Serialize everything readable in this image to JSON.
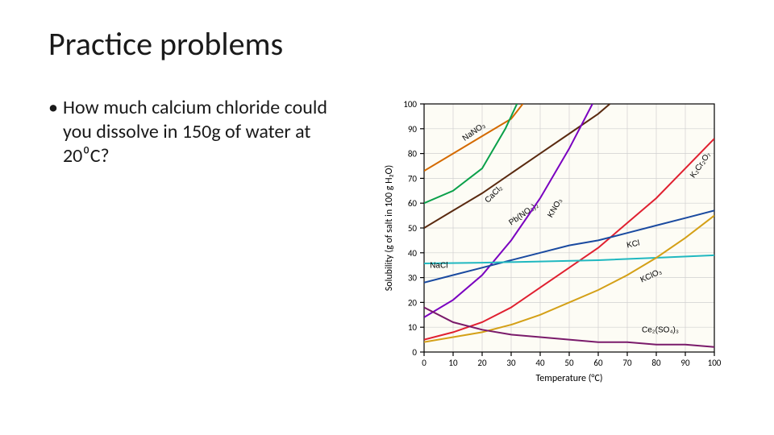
{
  "title": "Practice problems",
  "bullet_html": "How much calcium chloride could you dissolve in 150g of water at 20⁰C?",
  "chart": {
    "type": "line",
    "background_color": "#fdfcf5",
    "plot_border_color": "#000000",
    "grid_color": "#d0d0d0",
    "xlabel": "Temperature (°C)",
    "ylabel": "Solubility (g of salt in 100 g H₂O)",
    "label_fontsize": 12,
    "tick_fontsize": 11,
    "xlim": [
      0,
      100
    ],
    "ylim": [
      0,
      100
    ],
    "xtick_step": 10,
    "ytick_step": 10,
    "curves": [
      {
        "name": "NaNO3",
        "label": "NaNO₃",
        "color": "#d46a00",
        "width": 2,
        "points": [
          [
            0,
            73
          ],
          [
            10,
            80
          ],
          [
            20,
            87
          ],
          [
            30,
            94
          ],
          [
            34,
            100
          ]
        ],
        "label_pos": [
          14,
          85
        ],
        "label_rotate": -35
      },
      {
        "name": "CaCl2",
        "label": "CaCl₂",
        "color": "#0aa04a",
        "width": 2,
        "points": [
          [
            0,
            60
          ],
          [
            10,
            65
          ],
          [
            20,
            74
          ],
          [
            28,
            90
          ],
          [
            32,
            100
          ]
        ],
        "label_pos": [
          22,
          60
        ],
        "label_rotate": -45
      },
      {
        "name": "PbNO32",
        "label": "Pb(NO₃)₂",
        "color": "#5a2a10",
        "width": 2,
        "points": [
          [
            0,
            50
          ],
          [
            10,
            57
          ],
          [
            20,
            64
          ],
          [
            30,
            72
          ],
          [
            40,
            80
          ],
          [
            50,
            88
          ],
          [
            60,
            96
          ],
          [
            64,
            100
          ]
        ],
        "label_pos": [
          30,
          51
        ],
        "label_rotate": -35
      },
      {
        "name": "KNO3",
        "label": "KNO₃",
        "color": "#7a00c0",
        "width": 2,
        "points": [
          [
            0,
            14
          ],
          [
            10,
            21
          ],
          [
            20,
            31
          ],
          [
            30,
            45
          ],
          [
            40,
            62
          ],
          [
            50,
            82
          ],
          [
            58,
            100
          ]
        ],
        "label_pos": [
          44,
          54
        ],
        "label_rotate": -60
      },
      {
        "name": "K2Cr2O7",
        "label": "K₂Cr₂O₇",
        "color": "#e02030",
        "width": 2,
        "points": [
          [
            0,
            5
          ],
          [
            10,
            8
          ],
          [
            20,
            12
          ],
          [
            30,
            18
          ],
          [
            40,
            26
          ],
          [
            50,
            34
          ],
          [
            60,
            42
          ],
          [
            70,
            52
          ],
          [
            80,
            62
          ],
          [
            90,
            74
          ],
          [
            100,
            86
          ]
        ],
        "label_pos": [
          93,
          70
        ],
        "label_rotate": -55
      },
      {
        "name": "KCl",
        "label": "KCl",
        "color": "#1a4aa0",
        "width": 2,
        "points": [
          [
            0,
            28
          ],
          [
            10,
            31
          ],
          [
            20,
            34
          ],
          [
            30,
            37
          ],
          [
            40,
            40
          ],
          [
            50,
            43
          ],
          [
            60,
            45
          ],
          [
            70,
            48
          ],
          [
            80,
            51
          ],
          [
            90,
            54
          ],
          [
            100,
            57
          ]
        ],
        "label_pos": [
          70,
          42
        ],
        "label_rotate": -12
      },
      {
        "name": "NaCl",
        "label": "NaCl",
        "color": "#20b8c0",
        "width": 2,
        "points": [
          [
            0,
            35.7
          ],
          [
            20,
            36
          ],
          [
            40,
            36.5
          ],
          [
            60,
            37
          ],
          [
            80,
            38
          ],
          [
            100,
            39
          ]
        ],
        "label_pos": [
          2,
          34
        ],
        "label_rotate": 0
      },
      {
        "name": "KClO3",
        "label": "KClO₃",
        "color": "#d4a017",
        "width": 2,
        "points": [
          [
            0,
            4
          ],
          [
            10,
            6
          ],
          [
            20,
            8
          ],
          [
            30,
            11
          ],
          [
            40,
            15
          ],
          [
            50,
            20
          ],
          [
            60,
            25
          ],
          [
            70,
            31
          ],
          [
            80,
            38
          ],
          [
            90,
            46
          ],
          [
            100,
            55
          ]
        ],
        "label_pos": [
          75,
          28
        ],
        "label_rotate": -25
      },
      {
        "name": "Ce2SO43",
        "label": "Ce₂(SO₄)₃",
        "color": "#7a1a6a",
        "width": 2,
        "points": [
          [
            0,
            18
          ],
          [
            10,
            12
          ],
          [
            20,
            9
          ],
          [
            30,
            7
          ],
          [
            40,
            6
          ],
          [
            50,
            5
          ],
          [
            60,
            4
          ],
          [
            70,
            4
          ],
          [
            80,
            3
          ],
          [
            90,
            3
          ],
          [
            100,
            2
          ]
        ],
        "label_pos": [
          75,
          8
        ],
        "label_rotate": 0
      }
    ]
  }
}
